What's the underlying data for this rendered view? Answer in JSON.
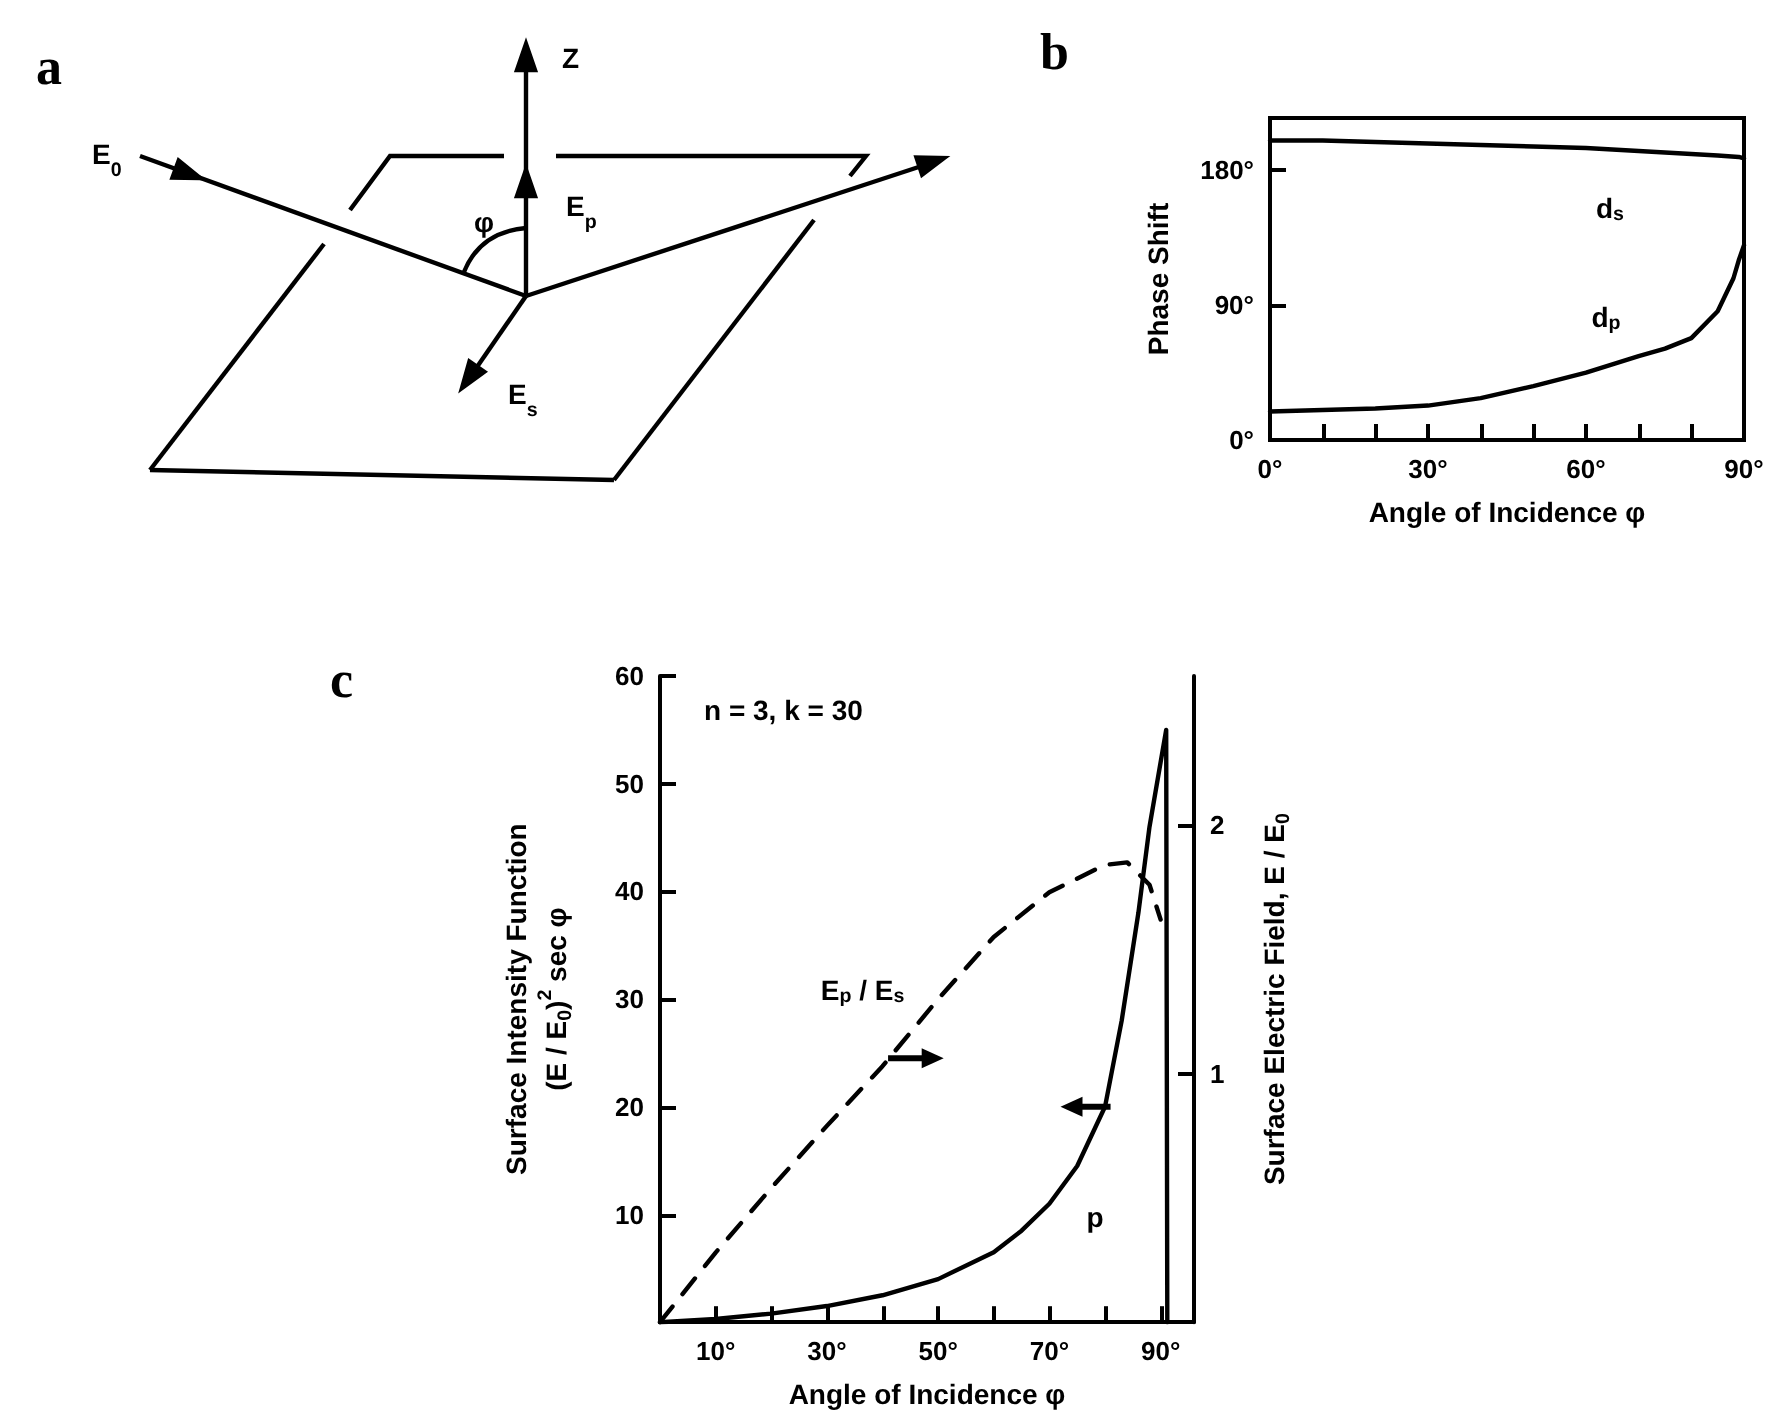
{
  "chart_data": [
    {
      "type": "other",
      "title": "a",
      "annotations": [
        "E$_{0}$",
        "Z",
        "E$_{p}$",
        "φ",
        "E$_{s}$"
      ]
    },
    {
      "type": "line",
      "title": "b",
      "xlabel": "Angle of Incidence φ",
      "ylabel": "Phase Shift",
      "xlim": [
        0,
        90
      ],
      "ylim": [
        0,
        215
      ],
      "xticks": [
        {
          "value": 0,
          "label": "0°"
        },
        {
          "value": 10,
          "label": null
        },
        {
          "value": 20,
          "label": null
        },
        {
          "value": 30,
          "label": "30°"
        },
        {
          "value": 40,
          "label": null
        },
        {
          "value": 50,
          "label": null
        },
        {
          "value": 60,
          "label": "60°"
        },
        {
          "value": 70,
          "label": null
        },
        {
          "value": 80,
          "label": null
        },
        {
          "value": 90,
          "label": "90°"
        }
      ],
      "yticks": [
        {
          "value": 0,
          "label": "0°"
        },
        {
          "value": 90,
          "label": "90°"
        },
        {
          "value": 180,
          "label": "180°"
        }
      ],
      "series": [
        {
          "name": "d$_{s}$",
          "color": "#000000",
          "x": [
            0,
            10,
            20,
            30,
            40,
            50,
            60,
            70,
            80,
            85,
            89,
            90
          ],
          "values": [
            200,
            200,
            199,
            198,
            197,
            196,
            195,
            193,
            191,
            190,
            189,
            188
          ]
        },
        {
          "name": "d$_{p}$",
          "color": "#000000",
          "x": [
            0,
            10,
            20,
            30,
            40,
            50,
            60,
            70,
            75,
            80,
            85,
            88,
            89,
            90
          ],
          "values": [
            19,
            20,
            21,
            23,
            28,
            36,
            45,
            56,
            61,
            68,
            86,
            108,
            120,
            130
          ]
        }
      ],
      "grid": false,
      "legend": false,
      "marker": "none",
      "line_style": "solid"
    },
    {
      "type": "line",
      "title": "c",
      "xlabel": "Angle of Incidence φ",
      "ylabel": "Surface Intensity Function\n(E / E$_{0}$)$^{2}$ sec φ",
      "y2label": "Surface Electric Field, E / E$_{0}$",
      "xlim": [
        0,
        96
      ],
      "ylim": [
        0,
        60
      ],
      "y2lim": [
        0,
        2.6
      ],
      "xticks": [
        {
          "value": 0,
          "label": null
        },
        {
          "value": 10,
          "label": "10°"
        },
        {
          "value": 20,
          "label": null
        },
        {
          "value": 30,
          "label": "30°"
        },
        {
          "value": 40,
          "label": null
        },
        {
          "value": 50,
          "label": "50°"
        },
        {
          "value": 60,
          "label": null
        },
        {
          "value": 70,
          "label": "70°"
        },
        {
          "value": 80,
          "label": null
        },
        {
          "value": 90,
          "label": "90°"
        }
      ],
      "yticks": [
        10,
        20,
        30,
        40,
        50,
        60
      ],
      "y2ticks": [
        1,
        2
      ],
      "series": [
        {
          "name": "p",
          "color": "#000000",
          "line_style": "solid",
          "x": [
            0,
            10,
            20,
            30,
            40,
            50,
            60,
            65,
            70,
            75,
            80,
            83,
            86,
            88,
            91,
            91.2
          ],
          "values": [
            0,
            0.3,
            0.8,
            1.5,
            2.5,
            4,
            6.5,
            8.5,
            11,
            14.5,
            20,
            28,
            38,
            46,
            55,
            0
          ]
        },
        {
          "name": "E$_{p}$ / E$_{s}$",
          "color": "#000000",
          "line_style": "dashed",
          "axis": "y2",
          "x": [
            0,
            10,
            20,
            30,
            40,
            50,
            60,
            70,
            80,
            84,
            88,
            90
          ],
          "values": [
            0,
            0.28,
            0.54,
            0.79,
            1.03,
            1.3,
            1.55,
            1.73,
            1.84,
            1.85,
            1.76,
            1.62
          ]
        }
      ],
      "annotations": [
        "n = 3, k = 30"
      ],
      "grid": false,
      "legend": false,
      "marker": "none"
    }
  ]
}
